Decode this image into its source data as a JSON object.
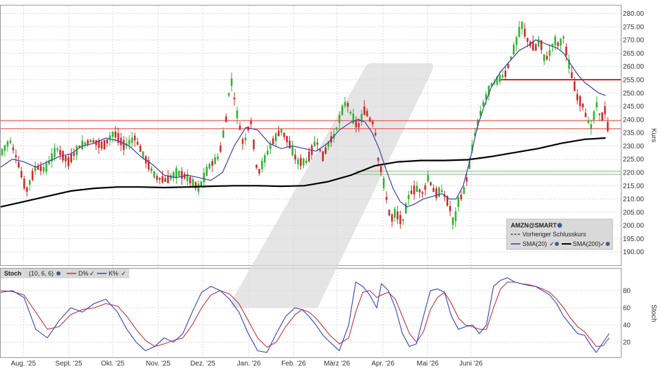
{
  "chart_data": [
    {
      "type": "candlestick",
      "symbol": "AMZN@SMART",
      "ylabel": "Kurs",
      "ylim": [
        185,
        283
      ],
      "yticks": [
        "280.00",
        "275.00",
        "270.00",
        "265.00",
        "260.00",
        "255.00",
        "250.00",
        "245.00",
        "240.00",
        "235.00",
        "230.00",
        "225.00",
        "220.00",
        "215.00",
        "210.00",
        "205.00",
        "200.00",
        "195.00",
        "190.00"
      ],
      "ytick_values": [
        280,
        275,
        270,
        265,
        260,
        255,
        250,
        245,
        240,
        235,
        230,
        225,
        220,
        215,
        210,
        205,
        200,
        195,
        190
      ],
      "xticks": [
        "Aug. '25",
        "Sept. '25",
        "Okt. '25",
        "Nov. '25",
        "Dez. '25",
        "Jan. '26",
        "Feb. '26",
        "März '26",
        "Apr. '26",
        "Mai '26",
        "Juni '26"
      ],
      "legend": {
        "title": "AMZN@SMART",
        "entries": [
          "Vorheriger Schlusskurs",
          "SMA(20)",
          "SMA(200)"
        ]
      },
      "horizontal_lines": [
        {
          "value": 239.5,
          "color": "#e0403a"
        },
        {
          "value": 236.5,
          "color": "#e0403a"
        },
        {
          "value": 255.0,
          "color": "#e0201a"
        },
        {
          "value": 220.5,
          "color": "#7fbf7f"
        },
        {
          "value": 219.3,
          "color": "#7fbf7f"
        }
      ],
      "price_path": [
        [
          0,
          227
        ],
        [
          8,
          232
        ],
        [
          14,
          225
        ],
        [
          22,
          213
        ],
        [
          30,
          222
        ],
        [
          38,
          221
        ],
        [
          48,
          229
        ],
        [
          58,
          224
        ],
        [
          68,
          230
        ],
        [
          78,
          232
        ],
        [
          88,
          230
        ],
        [
          97,
          235
        ],
        [
          106,
          230
        ],
        [
          115,
          233
        ],
        [
          124,
          225
        ],
        [
          133,
          218
        ],
        [
          142,
          217
        ],
        [
          151,
          220
        ],
        [
          160,
          218
        ],
        [
          170,
          214
        ],
        [
          178,
          222
        ],
        [
          187,
          226
        ],
        [
          193,
          240
        ],
        [
          197,
          256
        ],
        [
          202,
          243
        ],
        [
          208,
          230
        ],
        [
          214,
          240
        ],
        [
          220,
          219
        ],
        [
          226,
          225
        ],
        [
          232,
          231
        ],
        [
          240,
          236
        ],
        [
          246,
          232
        ],
        [
          254,
          224
        ],
        [
          262,
          224
        ],
        [
          270,
          232
        ],
        [
          276,
          226
        ],
        [
          282,
          232
        ],
        [
          286,
          234
        ],
        [
          292,
          243
        ],
        [
          296,
          247
        ],
        [
          300,
          242
        ],
        [
          306,
          237
        ],
        [
          312,
          244
        ],
        [
          316,
          240
        ],
        [
          320,
          238
        ],
        [
          324,
          222
        ],
        [
          326,
          221
        ],
        [
          330,
          211
        ],
        [
          334,
          202
        ],
        [
          338,
          205
        ],
        [
          344,
          201
        ],
        [
          350,
          212
        ],
        [
          356,
          214
        ],
        [
          362,
          212
        ],
        [
          366,
          218
        ],
        [
          372,
          212
        ],
        [
          378,
          213
        ],
        [
          384,
          208
        ],
        [
          388,
          200
        ],
        [
          392,
          209
        ],
        [
          396,
          212
        ],
        [
          400,
          219
        ],
        [
          404,
          230
        ],
        [
          408,
          238
        ],
        [
          414,
          247
        ],
        [
          420,
          253
        ],
        [
          426,
          255
        ],
        [
          432,
          257
        ],
        [
          436,
          262
        ],
        [
          442,
          270
        ],
        [
          446,
          276
        ],
        [
          452,
          269
        ],
        [
          458,
          267
        ],
        [
          462,
          270
        ],
        [
          466,
          262
        ],
        [
          470,
          265
        ],
        [
          474,
          270
        ],
        [
          478,
          268
        ],
        [
          482,
          271
        ],
        [
          486,
          262
        ],
        [
          490,
          255
        ],
        [
          494,
          248
        ],
        [
          498,
          246
        ],
        [
          502,
          240
        ],
        [
          506,
          237
        ],
        [
          510,
          246
        ],
        [
          514,
          240
        ],
        [
          518,
          244
        ],
        [
          521,
          233
        ]
      ],
      "sma20_path": [
        [
          0,
          222
        ],
        [
          10,
          225
        ],
        [
          20,
          224
        ],
        [
          30,
          222
        ],
        [
          40,
          224
        ],
        [
          50,
          226
        ],
        [
          60,
          227
        ],
        [
          70,
          230
        ],
        [
          80,
          231
        ],
        [
          90,
          233
        ],
        [
          100,
          232
        ],
        [
          110,
          230
        ],
        [
          120,
          226
        ],
        [
          130,
          223
        ],
        [
          140,
          219
        ],
        [
          150,
          218
        ],
        [
          160,
          219
        ],
        [
          170,
          218
        ],
        [
          180,
          217
        ],
        [
          190,
          220
        ],
        [
          200,
          230
        ],
        [
          210,
          237
        ],
        [
          220,
          236
        ],
        [
          230,
          231
        ],
        [
          240,
          229
        ],
        [
          250,
          230
        ],
        [
          260,
          229
        ],
        [
          270,
          228
        ],
        [
          280,
          231
        ],
        [
          290,
          236
        ],
        [
          300,
          239
        ],
        [
          306,
          240
        ],
        [
          312,
          239
        ],
        [
          318,
          235
        ],
        [
          324,
          229
        ],
        [
          330,
          221
        ],
        [
          336,
          214
        ],
        [
          342,
          209
        ],
        [
          348,
          207
        ],
        [
          354,
          208
        ],
        [
          362,
          210
        ],
        [
          370,
          211
        ],
        [
          378,
          212
        ],
        [
          384,
          210
        ],
        [
          390,
          210
        ],
        [
          396,
          215
        ],
        [
          402,
          225
        ],
        [
          408,
          237
        ],
        [
          414,
          245
        ],
        [
          420,
          252
        ],
        [
          428,
          258
        ],
        [
          436,
          262
        ],
        [
          444,
          266
        ],
        [
          452,
          268
        ],
        [
          458,
          270
        ],
        [
          464,
          269
        ],
        [
          470,
          268
        ],
        [
          476,
          267
        ],
        [
          482,
          265
        ],
        [
          488,
          261
        ],
        [
          494,
          257
        ],
        [
          500,
          254
        ],
        [
          506,
          252
        ],
        [
          512,
          250
        ],
        [
          518,
          249
        ]
      ],
      "sma200_path": [
        [
          0,
          207
        ],
        [
          20,
          209
        ],
        [
          40,
          211
        ],
        [
          60,
          213
        ],
        [
          80,
          214
        ],
        [
          100,
          214.5
        ],
        [
          120,
          214.5
        ],
        [
          140,
          214.3
        ],
        [
          160,
          214.5
        ],
        [
          180,
          214.8
        ],
        [
          200,
          215
        ],
        [
          220,
          215
        ],
        [
          240,
          214.8
        ],
        [
          260,
          215
        ],
        [
          280,
          216.5
        ],
        [
          300,
          219
        ],
        [
          320,
          222.5
        ],
        [
          340,
          224
        ],
        [
          360,
          224.5
        ],
        [
          380,
          224.5
        ],
        [
          400,
          224.8
        ],
        [
          420,
          226
        ],
        [
          440,
          227.5
        ],
        [
          460,
          229
        ],
        [
          480,
          231
        ],
        [
          500,
          232.5
        ],
        [
          518,
          233
        ]
      ]
    },
    {
      "type": "line",
      "label": "Stoch",
      "params": "(10, 6, 6)",
      "ylabel": "Stoch",
      "ylim": [
        0,
        100
      ],
      "yticks": [
        "80",
        "60",
        "40",
        "20"
      ],
      "ytick_values": [
        80,
        60,
        40,
        20
      ],
      "series": [
        {
          "name": "D%",
          "color": "#c03040"
        },
        {
          "name": "K%",
          "color": "#3040c0"
        }
      ],
      "k_path": [
        [
          0,
          78
        ],
        [
          10,
          80
        ],
        [
          20,
          72
        ],
        [
          30,
          35
        ],
        [
          40,
          25
        ],
        [
          50,
          45
        ],
        [
          60,
          60
        ],
        [
          70,
          55
        ],
        [
          80,
          65
        ],
        [
          90,
          70
        ],
        [
          100,
          55
        ],
        [
          108,
          35
        ],
        [
          116,
          20
        ],
        [
          124,
          10
        ],
        [
          132,
          15
        ],
        [
          140,
          25
        ],
        [
          148,
          20
        ],
        [
          156,
          30
        ],
        [
          164,
          55
        ],
        [
          172,
          78
        ],
        [
          180,
          85
        ],
        [
          188,
          80
        ],
        [
          196,
          70
        ],
        [
          204,
          55
        ],
        [
          212,
          30
        ],
        [
          220,
          10
        ],
        [
          228,
          8
        ],
        [
          236,
          30
        ],
        [
          244,
          50
        ],
        [
          252,
          60
        ],
        [
          258,
          58
        ],
        [
          264,
          50
        ],
        [
          270,
          40
        ],
        [
          276,
          28
        ],
        [
          282,
          20
        ],
        [
          290,
          10
        ],
        [
          298,
          40
        ],
        [
          304,
          90
        ],
        [
          310,
          85
        ],
        [
          316,
          75
        ],
        [
          322,
          60
        ],
        [
          326,
          88
        ],
        [
          332,
          80
        ],
        [
          338,
          60
        ],
        [
          344,
          30
        ],
        [
          350,
          15
        ],
        [
          356,
          18
        ],
        [
          362,
          50
        ],
        [
          368,
          80
        ],
        [
          374,
          82
        ],
        [
          380,
          78
        ],
        [
          386,
          50
        ],
        [
          392,
          35
        ],
        [
          398,
          38
        ],
        [
          404,
          40
        ],
        [
          410,
          30
        ],
        [
          416,
          40
        ],
        [
          422,
          85
        ],
        [
          428,
          92
        ],
        [
          434,
          95
        ],
        [
          440,
          90
        ],
        [
          446,
          88
        ],
        [
          452,
          86
        ],
        [
          458,
          85
        ],
        [
          464,
          80
        ],
        [
          470,
          75
        ],
        [
          476,
          65
        ],
        [
          482,
          50
        ],
        [
          488,
          40
        ],
        [
          494,
          30
        ],
        [
          500,
          28
        ],
        [
          506,
          15
        ],
        [
          510,
          8
        ],
        [
          516,
          20
        ],
        [
          521,
          30
        ]
      ],
      "d_path": [
        [
          0,
          80
        ],
        [
          10,
          79
        ],
        [
          20,
          75
        ],
        [
          30,
          55
        ],
        [
          40,
          35
        ],
        [
          50,
          38
        ],
        [
          60,
          52
        ],
        [
          70,
          58
        ],
        [
          80,
          60
        ],
        [
          90,
          65
        ],
        [
          100,
          62
        ],
        [
          108,
          50
        ],
        [
          116,
          35
        ],
        [
          124,
          22
        ],
        [
          132,
          15
        ],
        [
          140,
          18
        ],
        [
          148,
          22
        ],
        [
          156,
          25
        ],
        [
          164,
          40
        ],
        [
          172,
          60
        ],
        [
          180,
          75
        ],
        [
          188,
          80
        ],
        [
          196,
          76
        ],
        [
          204,
          65
        ],
        [
          212,
          45
        ],
        [
          220,
          25
        ],
        [
          228,
          14
        ],
        [
          236,
          20
        ],
        [
          244,
          38
        ],
        [
          252,
          52
        ],
        [
          258,
          58
        ],
        [
          264,
          55
        ],
        [
          270,
          48
        ],
        [
          276,
          38
        ],
        [
          282,
          28
        ],
        [
          290,
          18
        ],
        [
          298,
          25
        ],
        [
          304,
          55
        ],
        [
          310,
          78
        ],
        [
          316,
          80
        ],
        [
          322,
          72
        ],
        [
          326,
          75
        ],
        [
          332,
          78
        ],
        [
          338,
          70
        ],
        [
          344,
          50
        ],
        [
          350,
          30
        ],
        [
          356,
          20
        ],
        [
          362,
          32
        ],
        [
          368,
          58
        ],
        [
          374,
          72
        ],
        [
          380,
          78
        ],
        [
          386,
          65
        ],
        [
          392,
          48
        ],
        [
          398,
          40
        ],
        [
          404,
          38
        ],
        [
          410,
          35
        ],
        [
          416,
          35
        ],
        [
          422,
          60
        ],
        [
          428,
          82
        ],
        [
          434,
          90
        ],
        [
          440,
          90
        ],
        [
          446,
          88
        ],
        [
          452,
          87
        ],
        [
          458,
          85
        ],
        [
          464,
          82
        ],
        [
          470,
          78
        ],
        [
          476,
          70
        ],
        [
          482,
          60
        ],
        [
          488,
          48
        ],
        [
          494,
          38
        ],
        [
          500,
          32
        ],
        [
          506,
          22
        ],
        [
          510,
          15
        ],
        [
          516,
          16
        ],
        [
          521,
          25
        ]
      ]
    }
  ]
}
